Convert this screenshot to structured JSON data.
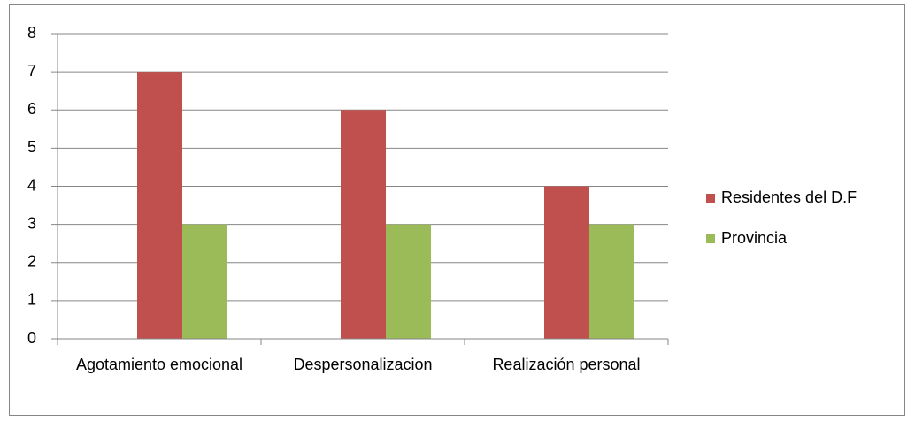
{
  "chart_data": {
    "type": "bar",
    "categories": [
      "Agotamiento emocional",
      "Despersonalizacion",
      "Realización personal"
    ],
    "series": [
      {
        "name": "Residentes del D.F",
        "color": "#c0504d",
        "values": [
          7,
          6,
          4
        ]
      },
      {
        "name": "Provincia",
        "color": "#9bbb59",
        "values": [
          3,
          3,
          3
        ]
      }
    ],
    "ylim": [
      0,
      8
    ],
    "yticks": [
      0,
      1,
      2,
      3,
      4,
      5,
      6,
      7,
      8
    ],
    "grid": true,
    "legend": "right"
  }
}
